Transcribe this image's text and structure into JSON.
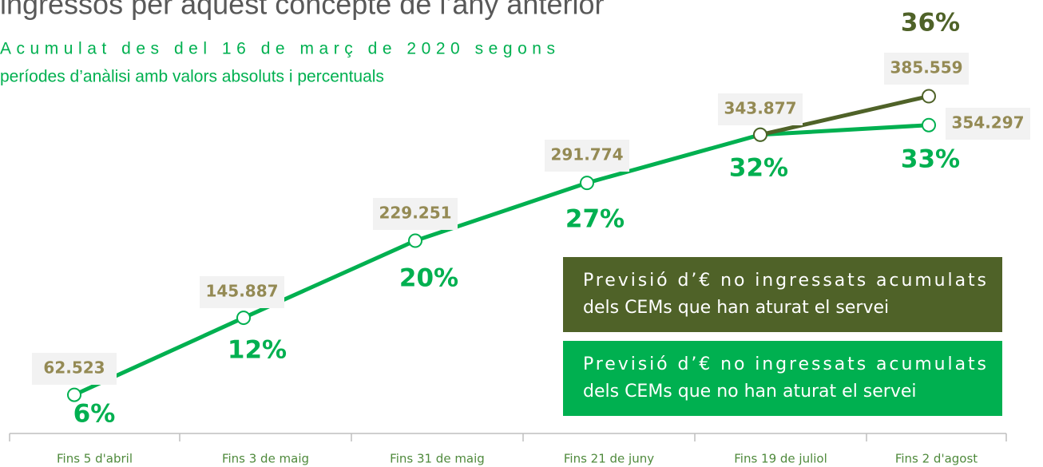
{
  "chart_data": {
    "type": "line",
    "title": "ingressos per aquest concepte de l’any anterior",
    "subtitle": [
      "Acumulat des del 16 de març de 2020 segons",
      "períodes d’anàlisi amb valors absoluts i percentuals"
    ],
    "categories": [
      "Fins 5 d'abril",
      "Fins 3 de maig",
      "Fins 31 de maig",
      "Fins 21 de juny",
      "Fins 19 de juliol",
      "Fins 2 d'agost"
    ],
    "series": [
      {
        "name": "Previsió d’€ no ingressats acumulats dels CEMs que han aturat el servei",
        "color": "#4f6228",
        "values": [
          null,
          null,
          null,
          null,
          343877,
          385559
        ],
        "value_labels": [
          null,
          null,
          null,
          null,
          null,
          "385.559"
        ],
        "percent_labels": [
          null,
          null,
          null,
          null,
          null,
          "36%"
        ]
      },
      {
        "name": "Previsió d’€ no ingressats acumulats dels CEMs que no han aturat el servei",
        "color": "#00b050",
        "values": [
          62523,
          145887,
          229251,
          291774,
          343877,
          354297
        ],
        "value_labels": [
          "62.523",
          "145.887",
          "229.251",
          "291.774",
          "343.877",
          "354.297"
        ],
        "percent_labels": [
          "6%",
          "12%",
          "20%",
          "27%",
          "32%",
          "33%"
        ]
      }
    ]
  }
}
